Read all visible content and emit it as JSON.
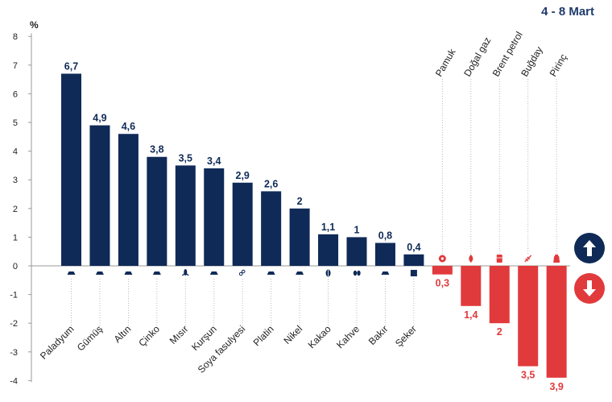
{
  "header": {
    "date_range": "4 - 8 Mart",
    "unit": "%"
  },
  "colors": {
    "positive": "#0f2a57",
    "negative": "#e13a3c",
    "grid": "#888888",
    "up_circle": "#0f2a57",
    "down_circle": "#e13a3c"
  },
  "chart_data": {
    "type": "bar",
    "title": "",
    "ylabel": "%",
    "ylim": [
      -4,
      8
    ],
    "yticks": [
      -4,
      -3,
      -2,
      -1,
      0,
      1,
      2,
      3,
      4,
      5,
      6,
      7,
      8
    ],
    "categories": [
      "Paladyum",
      "Gümüş",
      "Altın",
      "Çinko",
      "Mısır",
      "Kurşun",
      "Soya fasulyesi",
      "Platin",
      "Nikel",
      "Kakao",
      "Kahve",
      "Bakır",
      "Şeker",
      "Pamuk",
      "Doğal gaz",
      "Brent petrol",
      "Buğday",
      "Pirinç"
    ],
    "values": [
      6.7,
      4.9,
      4.6,
      3.8,
      3.5,
      3.4,
      2.9,
      2.6,
      2,
      1.1,
      1,
      0.8,
      0.4,
      -0.3,
      -1.4,
      -2,
      -3.5,
      -3.9
    ],
    "labels": [
      "6,7",
      "4,9",
      "4,6",
      "3,8",
      "3,5",
      "3,4",
      "2,9",
      "2,6",
      "2",
      "1,1",
      "1",
      "0,8",
      "0,4",
      "0,3",
      "1,4",
      "2",
      "3,5",
      "3,9"
    ],
    "icons": [
      "ingot-icon",
      "ingot-icon",
      "ingot-icon",
      "ingot-icon",
      "corn-icon",
      "ingot-icon",
      "soybean-icon",
      "ingot-icon",
      "ingot-icon",
      "cocoa-icon",
      "coffee-bean-icon",
      "ingot-icon",
      "sugar-cube-icon",
      "cotton-icon",
      "flame-icon",
      "oil-barrel-icon",
      "wheat-icon",
      "rice-bag-icon"
    ]
  }
}
